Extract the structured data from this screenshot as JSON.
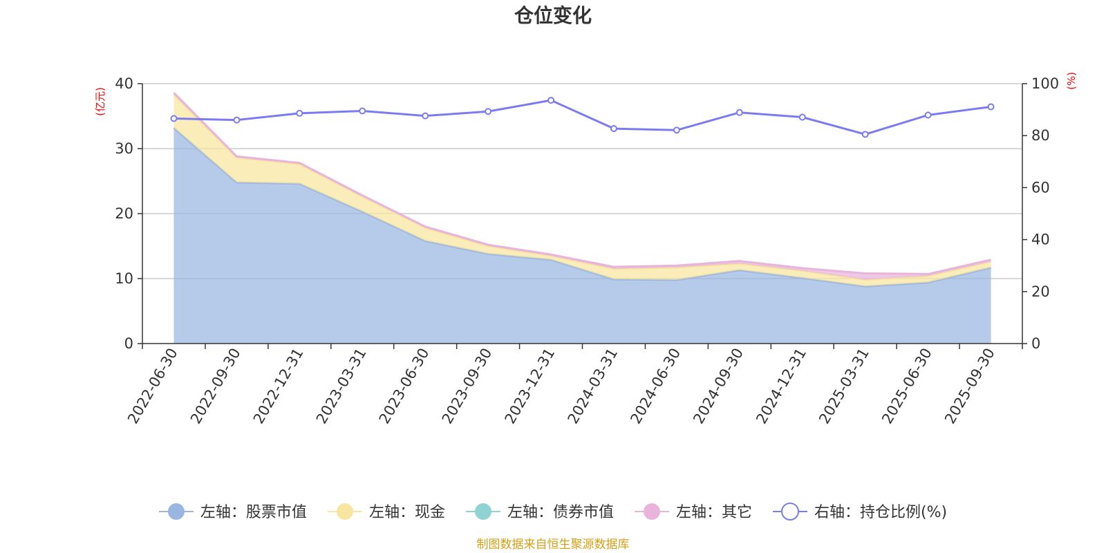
{
  "chart_data": {
    "type": "area",
    "title": "仓位变化",
    "categories": [
      "2022-06-30",
      "2022-09-30",
      "2022-12-31",
      "2023-03-31",
      "2023-06-30",
      "2023-09-30",
      "2023-12-31",
      "2024-03-31",
      "2024-06-30",
      "2024-09-30",
      "2024-12-31",
      "2025-03-31",
      "2025-06-30",
      "2025-09-30"
    ],
    "left_axis": {
      "unit": "(亿元)",
      "ylim": [
        0,
        40
      ],
      "ticks": [
        "0",
        "10",
        "20",
        "30",
        "40"
      ]
    },
    "right_axis": {
      "unit": "(%)",
      "ylim": [
        0,
        100
      ],
      "ticks": [
        "0",
        "20",
        "40",
        "60",
        "80",
        "100"
      ]
    },
    "series": [
      {
        "name": "左轴：股票市值",
        "axis": "left",
        "kind": "area",
        "color": "#9ab5e0",
        "values": [
          33.2,
          24.8,
          24.6,
          20.3,
          15.8,
          13.8,
          12.9,
          9.9,
          9.8,
          11.3,
          10.1,
          8.8,
          9.4,
          11.7
        ]
      },
      {
        "name": "左轴：现金",
        "axis": "left",
        "kind": "area",
        "color": "#f8e6a0",
        "values": [
          5.1,
          3.8,
          3.0,
          2.3,
          2.0,
          1.2,
          0.6,
          1.6,
          1.9,
          1.0,
          1.1,
          1.0,
          1.0,
          0.9
        ]
      },
      {
        "name": "左轴：债券市值",
        "axis": "left",
        "kind": "area",
        "color": "#8fd3d3",
        "values": [
          0,
          0,
          0,
          0,
          0,
          0,
          0,
          0,
          0,
          0,
          0,
          0,
          0,
          0
        ]
      },
      {
        "name": "左轴：其它",
        "axis": "left",
        "kind": "area",
        "color": "#e8b4dc",
        "values": [
          0.3,
          0.2,
          0.2,
          0.2,
          0.2,
          0.2,
          0.2,
          0.3,
          0.3,
          0.4,
          0.4,
          1.0,
          0.3,
          0.3
        ]
      },
      {
        "name": "右轴：持仓比例(%)",
        "axis": "right",
        "kind": "line",
        "color": "#7b7bf0",
        "values": [
          86.6,
          86.0,
          88.6,
          89.5,
          87.6,
          89.3,
          93.6,
          82.7,
          82.1,
          88.9,
          87.1,
          80.5,
          87.9,
          91.1
        ]
      }
    ],
    "grid": true,
    "legend_position": "bottom"
  },
  "footer": {
    "source": "制图数据来自恒生聚源数据库"
  }
}
